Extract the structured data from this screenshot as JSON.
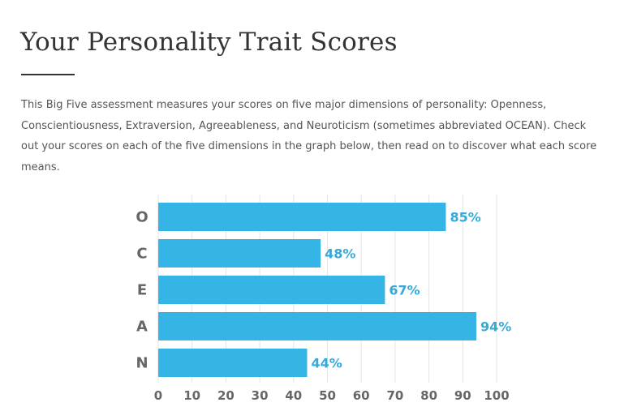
{
  "page": {
    "title": "Your Personality Trait Scores",
    "intro": "This Big Five assessment measures your scores on five major dimensions of personality: Openness, Conscientiousness, Extraversion, Agreeableness, and Neuroticism (sometimes abbreviated OCEAN). Check out your scores on each of the five dimensions in the graph below, then read on to discover what each score means."
  },
  "colors": {
    "bar": "#35b5e5",
    "value_label": "#35a9da",
    "grid": "#e4e4e4"
  },
  "chart_data": {
    "type": "bar",
    "orientation": "horizontal",
    "categories": [
      "O",
      "C",
      "E",
      "A",
      "N"
    ],
    "values": [
      85,
      48,
      67,
      94,
      44
    ],
    "value_labels": [
      "85%",
      "48%",
      "67%",
      "94%",
      "44%"
    ],
    "xlim": [
      0,
      100
    ],
    "xticks": [
      0,
      10,
      20,
      30,
      40,
      50,
      60,
      70,
      80,
      90,
      100
    ],
    "grid": true
  }
}
